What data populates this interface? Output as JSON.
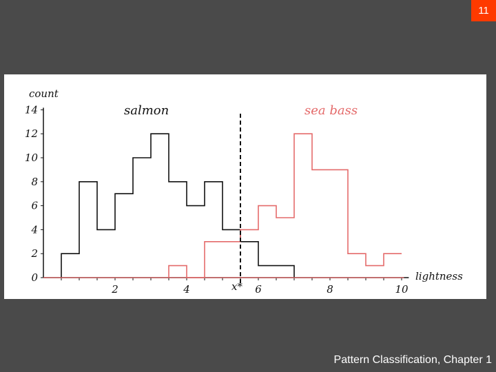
{
  "slide": {
    "number": "11",
    "footer": "Pattern Classification, Chapter 1"
  },
  "colors": {
    "background": "#4a4a4a",
    "badge": "#ff3a00",
    "salmon": "#111111",
    "sea_bass": "#e46a6a",
    "threshold": "#111111"
  },
  "chart_data": {
    "type": "line",
    "step": true,
    "xlabel": "lightness",
    "ylabel": "count",
    "xlim": [
      0,
      10.2
    ],
    "ylim": [
      0,
      14
    ],
    "xticks": [
      2,
      4,
      6,
      8,
      10
    ],
    "yticks": [
      0,
      2,
      4,
      6,
      8,
      10,
      12,
      14
    ],
    "threshold": {
      "x": 5.5,
      "label": "x*"
    },
    "bin_edges": [
      0,
      0.5,
      1,
      1.5,
      2,
      2.5,
      3,
      3.5,
      4,
      4.5,
      5,
      5.5,
      6,
      6.5,
      7,
      7.5,
      8,
      8.5,
      9,
      9.5,
      10
    ],
    "series": [
      {
        "name": "salmon",
        "counts": [
          0,
          2,
          8,
          4,
          7,
          10,
          12,
          8,
          6,
          8,
          4,
          3,
          1,
          1,
          0,
          0,
          0,
          0,
          0,
          0
        ]
      },
      {
        "name": "sea bass",
        "counts": [
          0,
          0,
          0,
          0,
          0,
          0,
          0,
          1,
          0,
          3,
          3,
          4,
          6,
          5,
          12,
          9,
          9,
          2,
          1,
          2
        ]
      }
    ]
  }
}
